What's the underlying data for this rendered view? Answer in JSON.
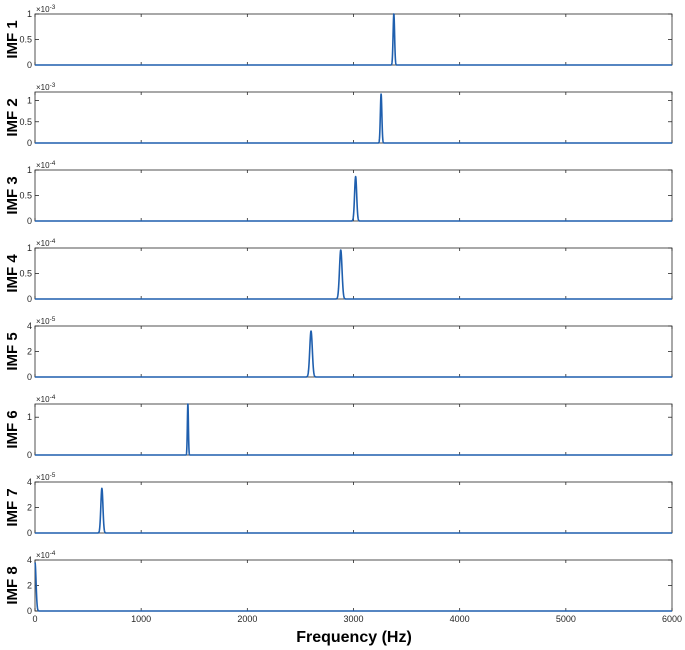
{
  "chart_data": {
    "type": "line",
    "xlabel": "Frequency (Hz)",
    "xlim": [
      0,
      6000
    ],
    "xticks": [
      "0",
      "1000",
      "2000",
      "3000",
      "4000",
      "5000",
      "6000"
    ],
    "line_color": "#1f5fae",
    "grid": false,
    "panels": [
      {
        "ylabel": "IMF 1",
        "exponent_base": "×10",
        "exponent": "-3",
        "ylim": [
          0,
          1
        ],
        "yticks": [
          "0",
          "0.5",
          "1"
        ],
        "peak_freq": 3380,
        "peak_value": 1.0,
        "peak_width": 10
      },
      {
        "ylabel": "IMF 2",
        "exponent_base": "×10",
        "exponent": "-3",
        "ylim": [
          0,
          1.2
        ],
        "yticks": [
          "0",
          "0.5",
          "1"
        ],
        "peak_freq": 3260,
        "peak_value": 1.15,
        "peak_width": 10
      },
      {
        "ylabel": "IMF 3",
        "exponent_base": "×10",
        "exponent": "-4",
        "ylim": [
          0,
          1
        ],
        "yticks": [
          "0",
          "0.5",
          "1"
        ],
        "peak_freq": 3020,
        "peak_value": 0.87,
        "peak_width": 14
      },
      {
        "ylabel": "IMF 4",
        "exponent_base": "×10",
        "exponent": "-4",
        "ylim": [
          0,
          1
        ],
        "yticks": [
          "0",
          "0.5",
          "1"
        ],
        "peak_freq": 2880,
        "peak_value": 0.96,
        "peak_width": 17
      },
      {
        "ylabel": "IMF 5",
        "exponent_base": "×10",
        "exponent": "-5",
        "ylim": [
          0,
          4
        ],
        "yticks": [
          "0",
          "2",
          "4"
        ],
        "peak_freq": 2600,
        "peak_value": 3.6,
        "peak_width": 17
      },
      {
        "ylabel": "IMF 6",
        "exponent_base": "×10",
        "exponent": "-4",
        "ylim": [
          0,
          1.35
        ],
        "yticks": [
          "0",
          "1"
        ],
        "peak_freq": 1440,
        "peak_value": 1.35,
        "peak_width": 7
      },
      {
        "ylabel": "IMF 7",
        "exponent_base": "×10",
        "exponent": "-5",
        "ylim": [
          0,
          4
        ],
        "yticks": [
          "0",
          "2",
          "4"
        ],
        "peak_freq": 630,
        "peak_value": 3.5,
        "peak_width": 14
      },
      {
        "ylabel": "IMF 8",
        "exponent_base": "×10",
        "exponent": "-4",
        "ylim": [
          0,
          4
        ],
        "yticks": [
          "0",
          "2",
          "4"
        ],
        "peak_freq": 0,
        "peak_value": 3.8,
        "peak_width": 14
      }
    ]
  }
}
